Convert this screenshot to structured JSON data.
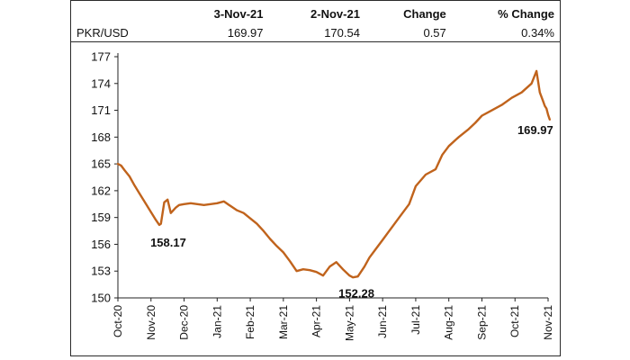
{
  "summary_table": {
    "headers": [
      "",
      "3-Nov-21",
      "2-Nov-21",
      "Change",
      "% Change"
    ],
    "row": [
      "PKR/USD",
      "169.97",
      "170.54",
      "0.57",
      "0.34%"
    ]
  },
  "chart_data": {
    "type": "line",
    "title": "",
    "xlabel": "",
    "ylabel": "",
    "ylim": [
      150,
      177
    ],
    "yticks": [
      "150",
      "153",
      "156",
      "159",
      "162",
      "165",
      "168",
      "171",
      "174",
      "177"
    ],
    "xticks": [
      "Oct-20",
      "Nov-20",
      "Dec-20",
      "Jan-21",
      "Feb-21",
      "Mar-21",
      "Apr-21",
      "May-21",
      "Jun-21",
      "Jul-21",
      "Aug-21",
      "Sep-21",
      "Oct-21",
      "Nov-21"
    ],
    "line_color": "#c0631c",
    "series": [
      {
        "x": [
          0,
          0.1,
          0.2,
          0.35,
          0.5,
          0.65,
          0.8,
          1.0,
          1.15,
          1.25,
          1.3,
          1.4,
          1.5,
          1.6,
          1.75,
          1.85,
          2.0,
          2.2,
          2.4,
          2.6,
          2.8,
          3.0,
          3.2,
          3.4,
          3.6,
          3.8,
          4.0,
          4.2,
          4.4,
          4.6,
          4.8,
          5.0,
          5.2,
          5.4,
          5.6,
          5.8,
          6.0,
          6.2,
          6.4,
          6.6,
          6.8,
          7.0,
          7.1,
          7.25,
          7.45,
          7.6,
          7.8,
          8.0,
          8.2,
          8.5,
          8.8,
          9.0,
          9.3,
          9.6,
          9.8,
          10.0,
          10.3,
          10.6,
          10.8,
          11.0,
          11.3,
          11.6,
          11.9,
          12.2,
          12.5,
          12.65,
          12.75,
          12.85,
          12.9,
          12.95,
          13.0,
          13.05
        ],
        "y": [
          165.0,
          164.8,
          164.3,
          163.6,
          162.6,
          161.7,
          160.8,
          159.6,
          158.7,
          158.17,
          158.3,
          160.7,
          161.0,
          159.5,
          160.1,
          160.4,
          160.5,
          160.6,
          160.5,
          160.4,
          160.5,
          160.6,
          160.8,
          160.3,
          159.8,
          159.5,
          158.9,
          158.3,
          157.5,
          156.6,
          155.8,
          155.1,
          154.1,
          153.0,
          153.2,
          153.1,
          152.9,
          152.5,
          153.5,
          154.0,
          153.2,
          152.5,
          152.3,
          152.4,
          153.5,
          154.5,
          155.5,
          156.5,
          157.5,
          159.0,
          160.5,
          162.5,
          163.8,
          164.4,
          166.0,
          167.0,
          168.0,
          168.9,
          169.6,
          170.4,
          171.0,
          171.6,
          172.4,
          173.0,
          174.0,
          175.4,
          173.0,
          172.0,
          171.5,
          171.2,
          170.5,
          169.97
        ]
      }
    ],
    "annotations": [
      {
        "text": "158.17",
        "x": 1.25,
        "y": 158.17
      },
      {
        "text": "152.28",
        "x": 7.1,
        "y": 152.28
      },
      {
        "text": "169.97",
        "x": 13.05,
        "y": 169.97
      }
    ]
  }
}
